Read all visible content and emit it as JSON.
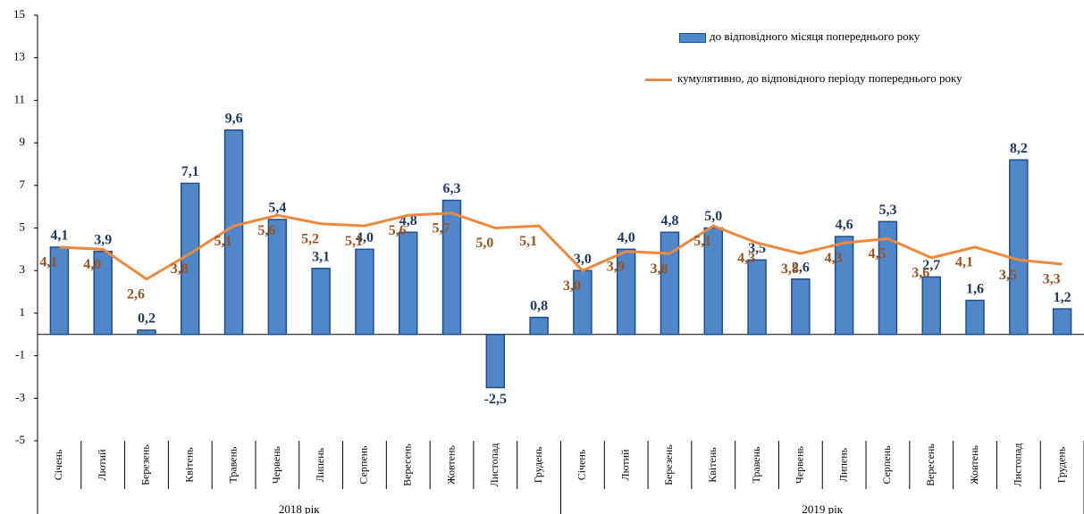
{
  "chart_data": {
    "type": "bar",
    "categories": [
      "Січень",
      "Лютий",
      "Березень",
      "Квітень",
      "Травень",
      "Червень",
      "Липень",
      "Серпень",
      "Вересень",
      "Жовтень",
      "Листопад",
      "Грудень",
      "Січень",
      "Лютий",
      "Березень",
      "Квітень",
      "Травень",
      "Червень",
      "Липень",
      "Серпень",
      "Вересень",
      "Жовтень",
      "Листопад",
      "Грудень"
    ],
    "groups": [
      "2018 рік",
      "2019 рік"
    ],
    "series": [
      {
        "name": "до відповідного  місяця попереднього року",
        "type": "bar",
        "color": "#4f87c8",
        "values": [
          4.1,
          3.9,
          0.2,
          7.1,
          9.6,
          5.4,
          3.1,
          4.0,
          4.8,
          6.3,
          -2.5,
          0.8,
          3.0,
          4.0,
          4.8,
          5.0,
          3.5,
          2.6,
          4.6,
          5.3,
          2.7,
          1.6,
          8.2,
          1.2
        ],
        "value_labels": [
          "4,1",
          "3,9",
          "0,2",
          "7,1",
          "9,6",
          "5,4",
          "3,1",
          "4,0",
          "4,8",
          "6,3",
          "-2,5",
          "0,8",
          "3,0",
          "4,0",
          "4,8",
          "5,0",
          "3,5",
          "2,6",
          "4,6",
          "5,3",
          "2,7",
          "1,6",
          "8,2",
          "1,2"
        ]
      },
      {
        "name": "кумулятивно, до відповідного  періоду попереднього року",
        "type": "line",
        "color": "#f0883a",
        "values": [
          4.1,
          4.0,
          2.6,
          3.8,
          5.1,
          5.6,
          5.2,
          5.1,
          5.6,
          5.7,
          5.0,
          5.1,
          3.0,
          3.9,
          3.8,
          5.1,
          4.3,
          3.8,
          4.3,
          4.5,
          3.6,
          4.1,
          3.5,
          3.3
        ],
        "value_labels": [
          "4,1",
          "4,0",
          "2,6",
          "3,8",
          "5,1",
          "5,6",
          "5,2",
          "5,1",
          "5,6",
          "5,7",
          "5,0",
          "5,1",
          "3,0",
          "3,9",
          "3,8",
          "5,1",
          "4,3",
          "3,8",
          "4,3",
          "4,5",
          "3,6",
          "4,1",
          "3,5",
          "3,3"
        ]
      }
    ],
    "ylim": [
      -5,
      15
    ],
    "yticks": [
      -5,
      -3,
      -1,
      1,
      3,
      5,
      7,
      9,
      11,
      13,
      15
    ]
  }
}
